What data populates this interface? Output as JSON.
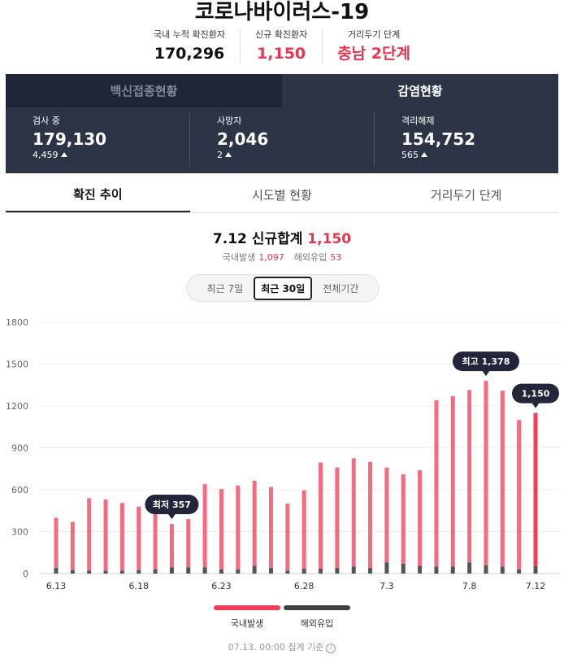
{
  "title": "코로나바이러스-19",
  "stats": [
    {
      "label": "국내 누적 확진환자",
      "value": "170,296"
    },
    {
      "label": "신규 확진환자",
      "value": "1,150"
    },
    {
      "label": "거리두기 단계",
      "value": "충남 2단계"
    }
  ],
  "top_tabs": [
    "백신접종현황",
    "감염현황"
  ],
  "metrics": [
    {
      "label": "검사 중",
      "value": "179,130",
      "delta": "4,459"
    },
    {
      "label": "사망자",
      "value": "2,046",
      "delta": "2"
    },
    {
      "label": "격리해제",
      "value": "154,752",
      "delta": "565"
    }
  ],
  "sub_tabs": [
    "확진 추이",
    "시도별 현황",
    "거리두기 단계"
  ],
  "summary": {
    "heading": "7.12 신규합계",
    "total": "1,150",
    "domestic_label": "국내발생",
    "domestic": "1,097",
    "overseas_label": "해외유입",
    "overseas": "53"
  },
  "range_options": [
    "최근 7일",
    "최근 30일",
    "전체기간"
  ],
  "legend": {
    "domestic": "국내발생",
    "overseas": "해외유입"
  },
  "footnote": "07.13. 00:00 집계 기준",
  "colors": {
    "domestic": "#f46b80",
    "domestic_latest": "#f23d59",
    "overseas": "#555555",
    "callout": "#23263a"
  },
  "chart_data": {
    "type": "bar",
    "stacked": true,
    "categories": [
      "6.13",
      "6.14",
      "6.15",
      "6.16",
      "6.17",
      "6.18",
      "6.19",
      "6.20",
      "6.21",
      "6.22",
      "6.23",
      "6.24",
      "6.25",
      "6.26",
      "6.27",
      "6.28",
      "6.29",
      "6.30",
      "7.1",
      "7.2",
      "7.3",
      "7.4",
      "7.5",
      "7.6",
      "7.7",
      "7.8",
      "7.9",
      "7.10",
      "7.11",
      "7.12"
    ],
    "x_tick_labels": [
      "6.13",
      "6.18",
      "6.23",
      "6.28",
      "7.3",
      "7.8",
      "7.12"
    ],
    "series": [
      {
        "name": "국내발생",
        "values": [
          360,
          345,
          520,
          510,
          485,
          455,
          490,
          310,
          345,
          595,
          575,
          600,
          610,
          580,
          480,
          560,
          760,
          720,
          775,
          760,
          680,
          640,
          685,
          1190,
          1220,
          1235,
          1320,
          1260,
          1070,
          1097
        ]
      },
      {
        "name": "해외유입",
        "values": [
          40,
          25,
          20,
          20,
          20,
          25,
          30,
          45,
          45,
          45,
          30,
          30,
          55,
          40,
          20,
          35,
          35,
          40,
          50,
          40,
          80,
          70,
          55,
          50,
          50,
          80,
          60,
          50,
          30,
          53
        ]
      }
    ],
    "ylim": [
      0,
      1800
    ],
    "yticks": [
      0,
      300,
      600,
      900,
      1200,
      1500,
      1800
    ],
    "grid": true,
    "annotations": [
      {
        "label": "최저 357",
        "index": 7
      },
      {
        "label": "최고 1,378",
        "index": 26
      },
      {
        "label": "1,150",
        "index": 29
      }
    ]
  }
}
